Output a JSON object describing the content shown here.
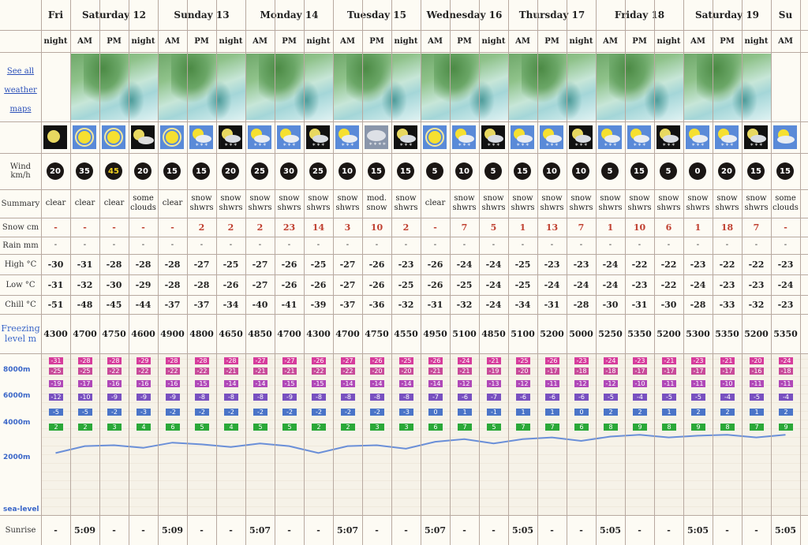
{
  "days": [
    {
      "label": "Fri",
      "periods": [
        "night"
      ]
    },
    {
      "label": "Saturday 12",
      "periods": [
        "AM",
        "PM",
        "night"
      ]
    },
    {
      "label": "Sunday 13",
      "periods": [
        "AM",
        "PM",
        "night"
      ]
    },
    {
      "label": "Monday 14",
      "periods": [
        "AM",
        "PM",
        "night"
      ]
    },
    {
      "label": "Tuesday 15",
      "periods": [
        "AM",
        "PM",
        "night"
      ]
    },
    {
      "label": "Wednesday 16",
      "periods": [
        "AM",
        "PM",
        "night"
      ]
    },
    {
      "label": "Thursday 17",
      "periods": [
        "AM",
        "PM",
        "night"
      ]
    },
    {
      "label": "Friday 18",
      "periods": [
        "AM",
        "PM",
        "night"
      ]
    },
    {
      "label": "Saturday 19",
      "periods": [
        "AM",
        "PM",
        "night"
      ]
    },
    {
      "label": "Su",
      "periods": [
        "AM"
      ]
    }
  ],
  "labels": {
    "maps_link": "See all weather maps",
    "wind": "Wind km/h",
    "summary": "Summary",
    "snow": "Snow cm",
    "rain": "Rain mm",
    "high": "High °C",
    "low": "Low °C",
    "chill": "Chill °C",
    "freezing": "Freezing level m",
    "sunrise": "Sunrise"
  },
  "icons": [
    "moon",
    "sun",
    "sun",
    "moon-cloud",
    "sun",
    "sun-snow",
    "moon-snow",
    "sun-snow",
    "sun-snow",
    "moon-snow",
    "sun-snow",
    "cloud",
    "moon-snow",
    "sun",
    "sun-snow",
    "moon-snow",
    "sun-snow",
    "sun-snow",
    "moon-snow",
    "sun-snow",
    "sun-snow",
    "moon-snow",
    "sun-snow",
    "sun-snow",
    "moon-snow",
    "sun-snow-cloud"
  ],
  "wind": [
    "20",
    "35",
    "45",
    "20",
    "15",
    "15",
    "20",
    "25",
    "30",
    "25",
    "10",
    "15",
    "15",
    "5",
    "10",
    "5",
    "15",
    "10",
    "10",
    "5",
    "15",
    "5",
    "0",
    "20",
    "15",
    "15"
  ],
  "summary": [
    "clear",
    "clear",
    "clear",
    "some clouds",
    "clear",
    "snow shwrs",
    "snow shwrs",
    "snow shwrs",
    "snow shwrs",
    "snow shwrs",
    "snow shwrs",
    "mod. snow",
    "snow shwrs",
    "clear",
    "snow shwrs",
    "snow shwrs",
    "snow shwrs",
    "snow shwrs",
    "snow shwrs",
    "snow shwrs",
    "snow shwrs",
    "snow shwrs",
    "snow shwrs",
    "snow shwrs",
    "snow shwrs",
    "some clouds"
  ],
  "snow": [
    "-",
    "-",
    "-",
    "-",
    "-",
    "2",
    "2",
    "2",
    "23",
    "14",
    "3",
    "10",
    "2",
    "-",
    "7",
    "5",
    "1",
    "13",
    "7",
    "1",
    "10",
    "6",
    "1",
    "18",
    "7",
    "-"
  ],
  "rain": [
    "-",
    "-",
    "-",
    "-",
    "-",
    "-",
    "-",
    "-",
    "-",
    "-",
    "-",
    "-",
    "-",
    "-",
    "-",
    "-",
    "-",
    "-",
    "-",
    "-",
    "-",
    "-",
    "-",
    "-",
    "-",
    "-"
  ],
  "high": [
    "-30",
    "-31",
    "-28",
    "-28",
    "-28",
    "-27",
    "-25",
    "-27",
    "-26",
    "-25",
    "-27",
    "-26",
    "-23",
    "-26",
    "-24",
    "-24",
    "-25",
    "-23",
    "-23",
    "-24",
    "-22",
    "-22",
    "-23",
    "-22",
    "-22",
    "-23"
  ],
  "low": [
    "-31",
    "-32",
    "-30",
    "-29",
    "-28",
    "-28",
    "-26",
    "-27",
    "-26",
    "-26",
    "-27",
    "-26",
    "-25",
    "-26",
    "-25",
    "-24",
    "-25",
    "-24",
    "-24",
    "-24",
    "-23",
    "-22",
    "-24",
    "-23",
    "-23",
    "-24"
  ],
  "chill": [
    "-51",
    "-48",
    "-45",
    "-44",
    "-37",
    "-37",
    "-34",
    "-40",
    "-41",
    "-39",
    "-37",
    "-36",
    "-32",
    "-31",
    "-32",
    "-24",
    "-34",
    "-31",
    "-28",
    "-30",
    "-31",
    "-30",
    "-28",
    "-33",
    "-32",
    "-23"
  ],
  "freezing": [
    "4300",
    "4700",
    "4750",
    "4600",
    "4900",
    "4800",
    "4650",
    "4850",
    "4700",
    "4300",
    "4700",
    "4750",
    "4550",
    "4950",
    "5100",
    "4850",
    "5100",
    "5200",
    "5000",
    "5250",
    "5350",
    "5200",
    "5300",
    "5350",
    "5200",
    "5350"
  ],
  "sunrise": [
    "-",
    "5:09",
    "-",
    "-",
    "5:09",
    "-",
    "-",
    "5:07",
    "-",
    "-",
    "5:07",
    "-",
    "-",
    "5:07",
    "-",
    "-",
    "5:05",
    "-",
    "-",
    "5:05",
    "-",
    "-",
    "5:05",
    "-",
    "-",
    "5:05"
  ],
  "chart_labels": [
    "8000m",
    "6000m",
    "4000m",
    "2000m",
    "sea-level"
  ],
  "chart_tags": {
    "row1": [
      "-31",
      "-28",
      "-28",
      "-29",
      "-28",
      "-28",
      "-28",
      "-27",
      "-27",
      "-26",
      "-27",
      "-26",
      "-25",
      "-26",
      "-24",
      "-21",
      "-25",
      "-26",
      "-23",
      "-24",
      "-23",
      "-21",
      "-23",
      "-21",
      "-20",
      "-24"
    ],
    "row2": [
      "-25",
      "-25",
      "-22",
      "-22",
      "-22",
      "-22",
      "-21",
      "-21",
      "-21",
      "-22",
      "-22",
      "-20",
      "-20",
      "-21",
      "-21",
      "-19",
      "-20",
      "-17",
      "-18",
      "-18",
      "-17",
      "-17",
      "-17",
      "-17",
      "-16",
      "-18"
    ],
    "row3": [
      "-19",
      "-17",
      "-16",
      "-16",
      "-16",
      "-15",
      "-14",
      "-14",
      "-15",
      "-15",
      "-14",
      "-14",
      "-14",
      "-14",
      "-12",
      "-13",
      "-12",
      "-11",
      "-12",
      "-12",
      "-10",
      "-11",
      "-11",
      "-10",
      "-11",
      "-11"
    ],
    "row4": [
      "-12",
      "-10",
      "-9",
      "-9",
      "-9",
      "-8",
      "-8",
      "-8",
      "-9",
      "-8",
      "-8",
      "-8",
      "-8",
      "-7",
      "-6",
      "-7",
      "-6",
      "-6",
      "-6",
      "-5",
      "-4",
      "-5",
      "-5",
      "-4",
      "-5",
      "-4"
    ],
    "row5": [
      "-5",
      "-5",
      "-2",
      "-3",
      "-2",
      "-2",
      "-2",
      "-2",
      "-2",
      "-2",
      "-2",
      "-2",
      "-3",
      "0",
      "1",
      "-1",
      "1",
      "1",
      "0",
      "2",
      "2",
      "1",
      "2",
      "2",
      "1",
      "2"
    ],
    "row6": [
      "2",
      "2",
      "3",
      "4",
      "6",
      "5",
      "4",
      "5",
      "5",
      "2",
      "2",
      "3",
      "3",
      "6",
      "7",
      "5",
      "7",
      "7",
      "6",
      "8",
      "9",
      "8",
      "9",
      "8",
      "7",
      "9"
    ]
  },
  "colors": {
    "tag1": "#d63c9c",
    "tag2": "#c84a9a",
    "tag3": "#b048b8",
    "tag4": "#7850c0",
    "tag5": "#4a74c8",
    "tag6": "#2aa838",
    "line": "#6a8fd8"
  }
}
